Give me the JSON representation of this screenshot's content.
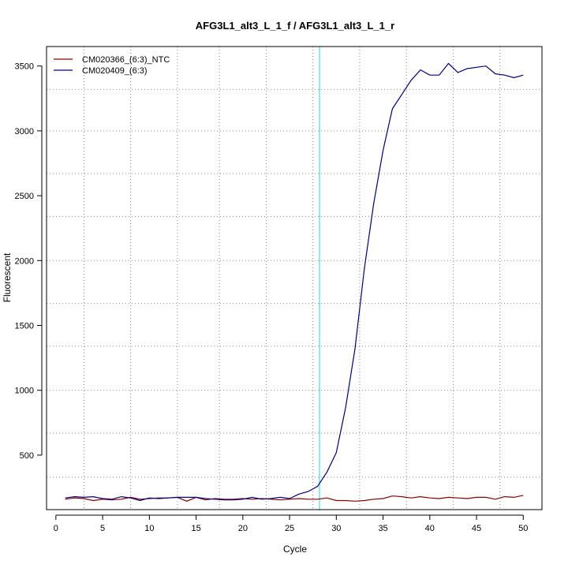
{
  "chart_data": {
    "type": "line",
    "title": "AFG3L1_alt3_L_1_f / AFG3L1_alt3_L_1_r",
    "xlabel": "Cycle",
    "ylabel": "Fluorescent",
    "xlim": [
      -1,
      52
    ],
    "ylim": [
      80,
      3650
    ],
    "xticks": [
      0,
      5,
      10,
      15,
      20,
      25,
      30,
      35,
      40,
      45,
      50
    ],
    "yticks": [
      500,
      1000,
      1500,
      2000,
      2500,
      3000,
      3500
    ],
    "grid": true,
    "grid_x": [
      3,
      8,
      13,
      17.5,
      22.5,
      27.5,
      32.5,
      37.5,
      42.5,
      47.5
    ],
    "grid_y": [
      330,
      670,
      1000,
      1340,
      1670,
      2000,
      2340,
      2670,
      3000,
      3320
    ],
    "legend_position": "top-left",
    "threshold_x": 28.2,
    "threshold_color": "#66e6e6",
    "series": [
      {
        "name": "CM020366_(6:3)_NTC",
        "color": "#8b0000",
        "x": [
          1,
          2,
          3,
          4,
          5,
          6,
          7,
          8,
          9,
          10,
          11,
          12,
          13,
          14,
          15,
          16,
          17,
          18,
          19,
          20,
          21,
          22,
          23,
          24,
          25,
          26,
          27,
          28,
          29,
          30,
          31,
          32,
          33,
          34,
          35,
          36,
          37,
          38,
          39,
          40,
          41,
          42,
          43,
          44,
          45,
          46,
          47,
          48,
          49,
          50
        ],
        "values": [
          160,
          170,
          165,
          150,
          160,
          155,
          160,
          175,
          160,
          165,
          170,
          170,
          175,
          145,
          175,
          155,
          165,
          160,
          160,
          165,
          160,
          165,
          160,
          155,
          160,
          165,
          160,
          160,
          170,
          150,
          150,
          145,
          150,
          160,
          165,
          185,
          180,
          170,
          180,
          170,
          165,
          175,
          170,
          165,
          175,
          175,
          160,
          180,
          175,
          190
        ]
      },
      {
        "name": "CM020409_(6:3)",
        "color": "#000080",
        "x": [
          1,
          2,
          3,
          4,
          5,
          6,
          7,
          8,
          9,
          10,
          11,
          12,
          13,
          14,
          15,
          16,
          17,
          18,
          19,
          20,
          21,
          22,
          23,
          24,
          25,
          26,
          27,
          28,
          29,
          30,
          31,
          32,
          33,
          34,
          35,
          36,
          37,
          38,
          39,
          40,
          41,
          42,
          43,
          44,
          45,
          46,
          47,
          48,
          49,
          50
        ],
        "values": [
          170,
          180,
          175,
          180,
          165,
          160,
          180,
          170,
          150,
          170,
          165,
          170,
          175,
          175,
          175,
          165,
          160,
          155,
          155,
          160,
          175,
          160,
          165,
          175,
          165,
          200,
          220,
          260,
          370,
          520,
          870,
          1320,
          1940,
          2440,
          2850,
          3170,
          3280,
          3390,
          3470,
          3430,
          3430,
          3520,
          3450,
          3480,
          3490,
          3500,
          3440,
          3430,
          3410,
          3430
        ]
      }
    ]
  }
}
